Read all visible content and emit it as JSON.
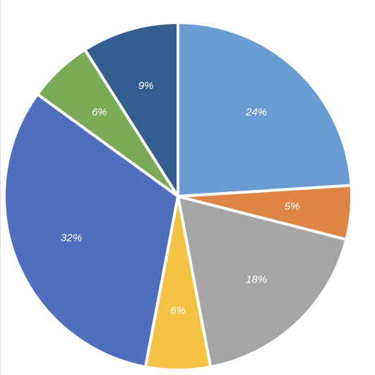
{
  "chart_data": {
    "type": "pie",
    "title": "",
    "start_angle_deg": 0,
    "direction": "clockwise",
    "show_legend": false,
    "slices": [
      {
        "value": 24,
        "label": "24%",
        "color": "#6a9bd2"
      },
      {
        "value": 5,
        "label": "5%",
        "color": "#de8444"
      },
      {
        "value": 18,
        "label": "18%",
        "color": "#a5a5a5"
      },
      {
        "value": 6,
        "label": "6%",
        "color": "#f4c242"
      },
      {
        "value": 32,
        "label": "32%",
        "color": "#4f6fbe"
      },
      {
        "value": 6,
        "label": "6%",
        "color": "#79aa55"
      },
      {
        "value": 9,
        "label": "9%",
        "color": "#345d90"
      }
    ]
  }
}
